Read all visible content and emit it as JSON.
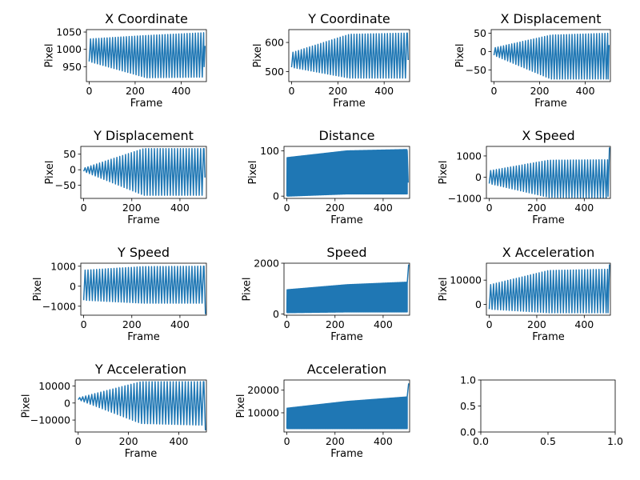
{
  "line_color": "#1f77b4",
  "chart_data": [
    {
      "type": "line",
      "title": "X Coordinate",
      "xlabel": "Frame",
      "ylabel": "Pixel",
      "xlim": [
        -12,
        510
      ],
      "ylim": [
        907,
        1057
      ],
      "xticks": [
        0,
        200,
        400
      ],
      "yticks": [
        950,
        1000,
        1050
      ],
      "x_range": [
        0,
        500
      ],
      "period": 12,
      "lower": [
        965,
        918,
        920
      ],
      "upper": [
        1030,
        1040,
        1048
      ],
      "end": {
        "points": [
          [
            500,
            950
          ],
          [
            504,
            1010
          ]
        ]
      }
    },
    {
      "type": "line",
      "title": "Y Coordinate",
      "xlabel": "Frame",
      "ylabel": "Pixel",
      "xlim": [
        -12,
        510
      ],
      "ylim": [
        466,
        644
      ],
      "xticks": [
        0,
        200,
        400
      ],
      "yticks": [
        500,
        600
      ],
      "x_range": [
        0,
        500
      ],
      "period": 12,
      "lower": [
        515,
        478,
        478
      ],
      "upper": [
        565,
        628,
        632
      ],
      "end": {
        "points": [
          [
            500,
            632
          ],
          [
            504,
            540
          ]
        ]
      }
    },
    {
      "type": "line",
      "title": "X Displacement",
      "xlabel": "Frame",
      "ylabel": "Pixel",
      "xlim": [
        -12,
        510
      ],
      "ylim": [
        -82,
        60
      ],
      "xticks": [
        0,
        200,
        400
      ],
      "yticks": [
        -50,
        0,
        50
      ],
      "x_range": [
        0,
        500
      ],
      "period": 12,
      "lower": [
        -10,
        -75,
        -75
      ],
      "upper": [
        10,
        45,
        50
      ],
      "end": {
        "points": [
          [
            500,
            -75
          ],
          [
            504,
            18
          ]
        ]
      }
    },
    {
      "type": "line",
      "title": "Y Displacement",
      "xlabel": "Frame",
      "ylabel": "Pixel",
      "xlim": [
        -12,
        510
      ],
      "ylim": [
        -92,
        75
      ],
      "xticks": [
        0,
        200,
        400
      ],
      "yticks": [
        -50,
        0,
        50
      ],
      "x_range": [
        0,
        500
      ],
      "period": 12,
      "lower": [
        -5,
        -82,
        -82
      ],
      "upper": [
        5,
        68,
        68
      ],
      "end": {
        "points": [
          [
            500,
            68
          ],
          [
            504,
            -25
          ]
        ]
      }
    },
    {
      "type": "line",
      "title": "Distance",
      "xlabel": "Frame",
      "ylabel": "Pixel",
      "xlim": [
        -12,
        510
      ],
      "ylim": [
        -5,
        110
      ],
      "xticks": [
        0,
        200,
        400
      ],
      "yticks": [
        0,
        100
      ],
      "x_range": [
        0,
        500
      ],
      "period": 2,
      "lower": [
        0,
        5,
        5
      ],
      "upper": [
        85,
        100,
        103
      ],
      "end": {
        "points": [
          [
            500,
            100
          ],
          [
            504,
            30
          ]
        ]
      }
    },
    {
      "type": "line",
      "title": "X Speed",
      "xlabel": "Frame",
      "ylabel": "Pixel",
      "xlim": [
        -12,
        510
      ],
      "ylim": [
        -1000,
        1450
      ],
      "xticks": [
        0,
        200,
        400
      ],
      "yticks": [
        -1000,
        0,
        1000
      ],
      "x_range": [
        0,
        500
      ],
      "period": 12,
      "lower": [
        -300,
        -950,
        -980
      ],
      "upper": [
        300,
        800,
        820
      ],
      "end": {
        "points": [
          [
            500,
            -900
          ],
          [
            506,
            1400
          ]
        ]
      }
    },
    {
      "type": "line",
      "title": "Y Speed",
      "xlabel": "Frame",
      "ylabel": "Pixel",
      "xlim": [
        -12,
        510
      ],
      "ylim": [
        -1450,
        1150
      ],
      "xticks": [
        0,
        200,
        400
      ],
      "yticks": [
        -1000,
        0,
        1000
      ],
      "x_range": [
        0,
        500
      ],
      "period": 12,
      "lower": [
        -700,
        -850,
        -850
      ],
      "upper": [
        800,
        980,
        1000
      ],
      "end": {
        "points": [
          [
            500,
            1000
          ],
          [
            506,
            -1400
          ]
        ]
      }
    },
    {
      "type": "line",
      "title": "Speed",
      "xlabel": "Frame",
      "ylabel": "Pixel",
      "xlim": [
        -12,
        510
      ],
      "ylim": [
        -50,
        2000
      ],
      "xticks": [
        0,
        200,
        400
      ],
      "yticks": [
        0,
        2000
      ],
      "x_range": [
        0,
        500
      ],
      "period": 2,
      "lower": [
        50,
        80,
        80
      ],
      "upper": [
        950,
        1150,
        1250
      ],
      "end": {
        "points": [
          [
            500,
            1200
          ],
          [
            506,
            1950
          ]
        ]
      }
    },
    {
      "type": "line",
      "title": "X Acceleration",
      "xlabel": "Frame",
      "ylabel": "Pixel",
      "xlim": [
        -12,
        510
      ],
      "ylim": [
        -4500,
        17000
      ],
      "xticks": [
        0,
        200,
        400
      ],
      "yticks": [
        0,
        10000
      ],
      "x_range": [
        0,
        500
      ],
      "period": 12,
      "lower": [
        -2000,
        -3500,
        -3500
      ],
      "upper": [
        8000,
        14000,
        14500
      ],
      "end": {
        "points": [
          [
            500,
            -3500
          ],
          [
            506,
            16500
          ]
        ]
      }
    },
    {
      "type": "line",
      "title": "Y Acceleration",
      "xlabel": "Frame",
      "ylabel": "Pixel",
      "xlim": [
        -12,
        510
      ],
      "ylim": [
        -17000,
        13500
      ],
      "xticks": [
        0,
        200,
        400
      ],
      "yticks": [
        -10000,
        0,
        10000
      ],
      "x_range": [
        0,
        500
      ],
      "period": 12,
      "lower": [
        2000,
        -12000,
        -13000
      ],
      "upper": [
        3000,
        12500,
        12500
      ],
      "end": {
        "points": [
          [
            500,
            12500
          ],
          [
            506,
            -16000
          ]
        ]
      }
    },
    {
      "type": "line",
      "title": "Acceleration",
      "xlabel": "Frame",
      "ylabel": "Pixel",
      "xlim": [
        -12,
        510
      ],
      "ylim": [
        1500,
        24500
      ],
      "xticks": [
        0,
        200,
        400
      ],
      "yticks": [
        10000,
        20000
      ],
      "x_range": [
        0,
        500
      ],
      "period": 2,
      "lower": [
        3000,
        3000,
        3000
      ],
      "upper": [
        12000,
        15000,
        17000
      ],
      "end": {
        "points": [
          [
            500,
            17000
          ],
          [
            506,
            23000
          ]
        ]
      }
    },
    {
      "type": "empty",
      "title": "",
      "xlabel": "",
      "ylabel": "",
      "xlim": [
        0,
        1
      ],
      "ylim": [
        0,
        1
      ],
      "xticks": [
        0,
        0.5,
        1
      ],
      "yticks": [
        0,
        0.5,
        1
      ],
      "xtick_labels": [
        "0.0",
        "0.5",
        "1.0"
      ],
      "ytick_labels": [
        "0.0",
        "0.5",
        "1.0"
      ]
    }
  ]
}
